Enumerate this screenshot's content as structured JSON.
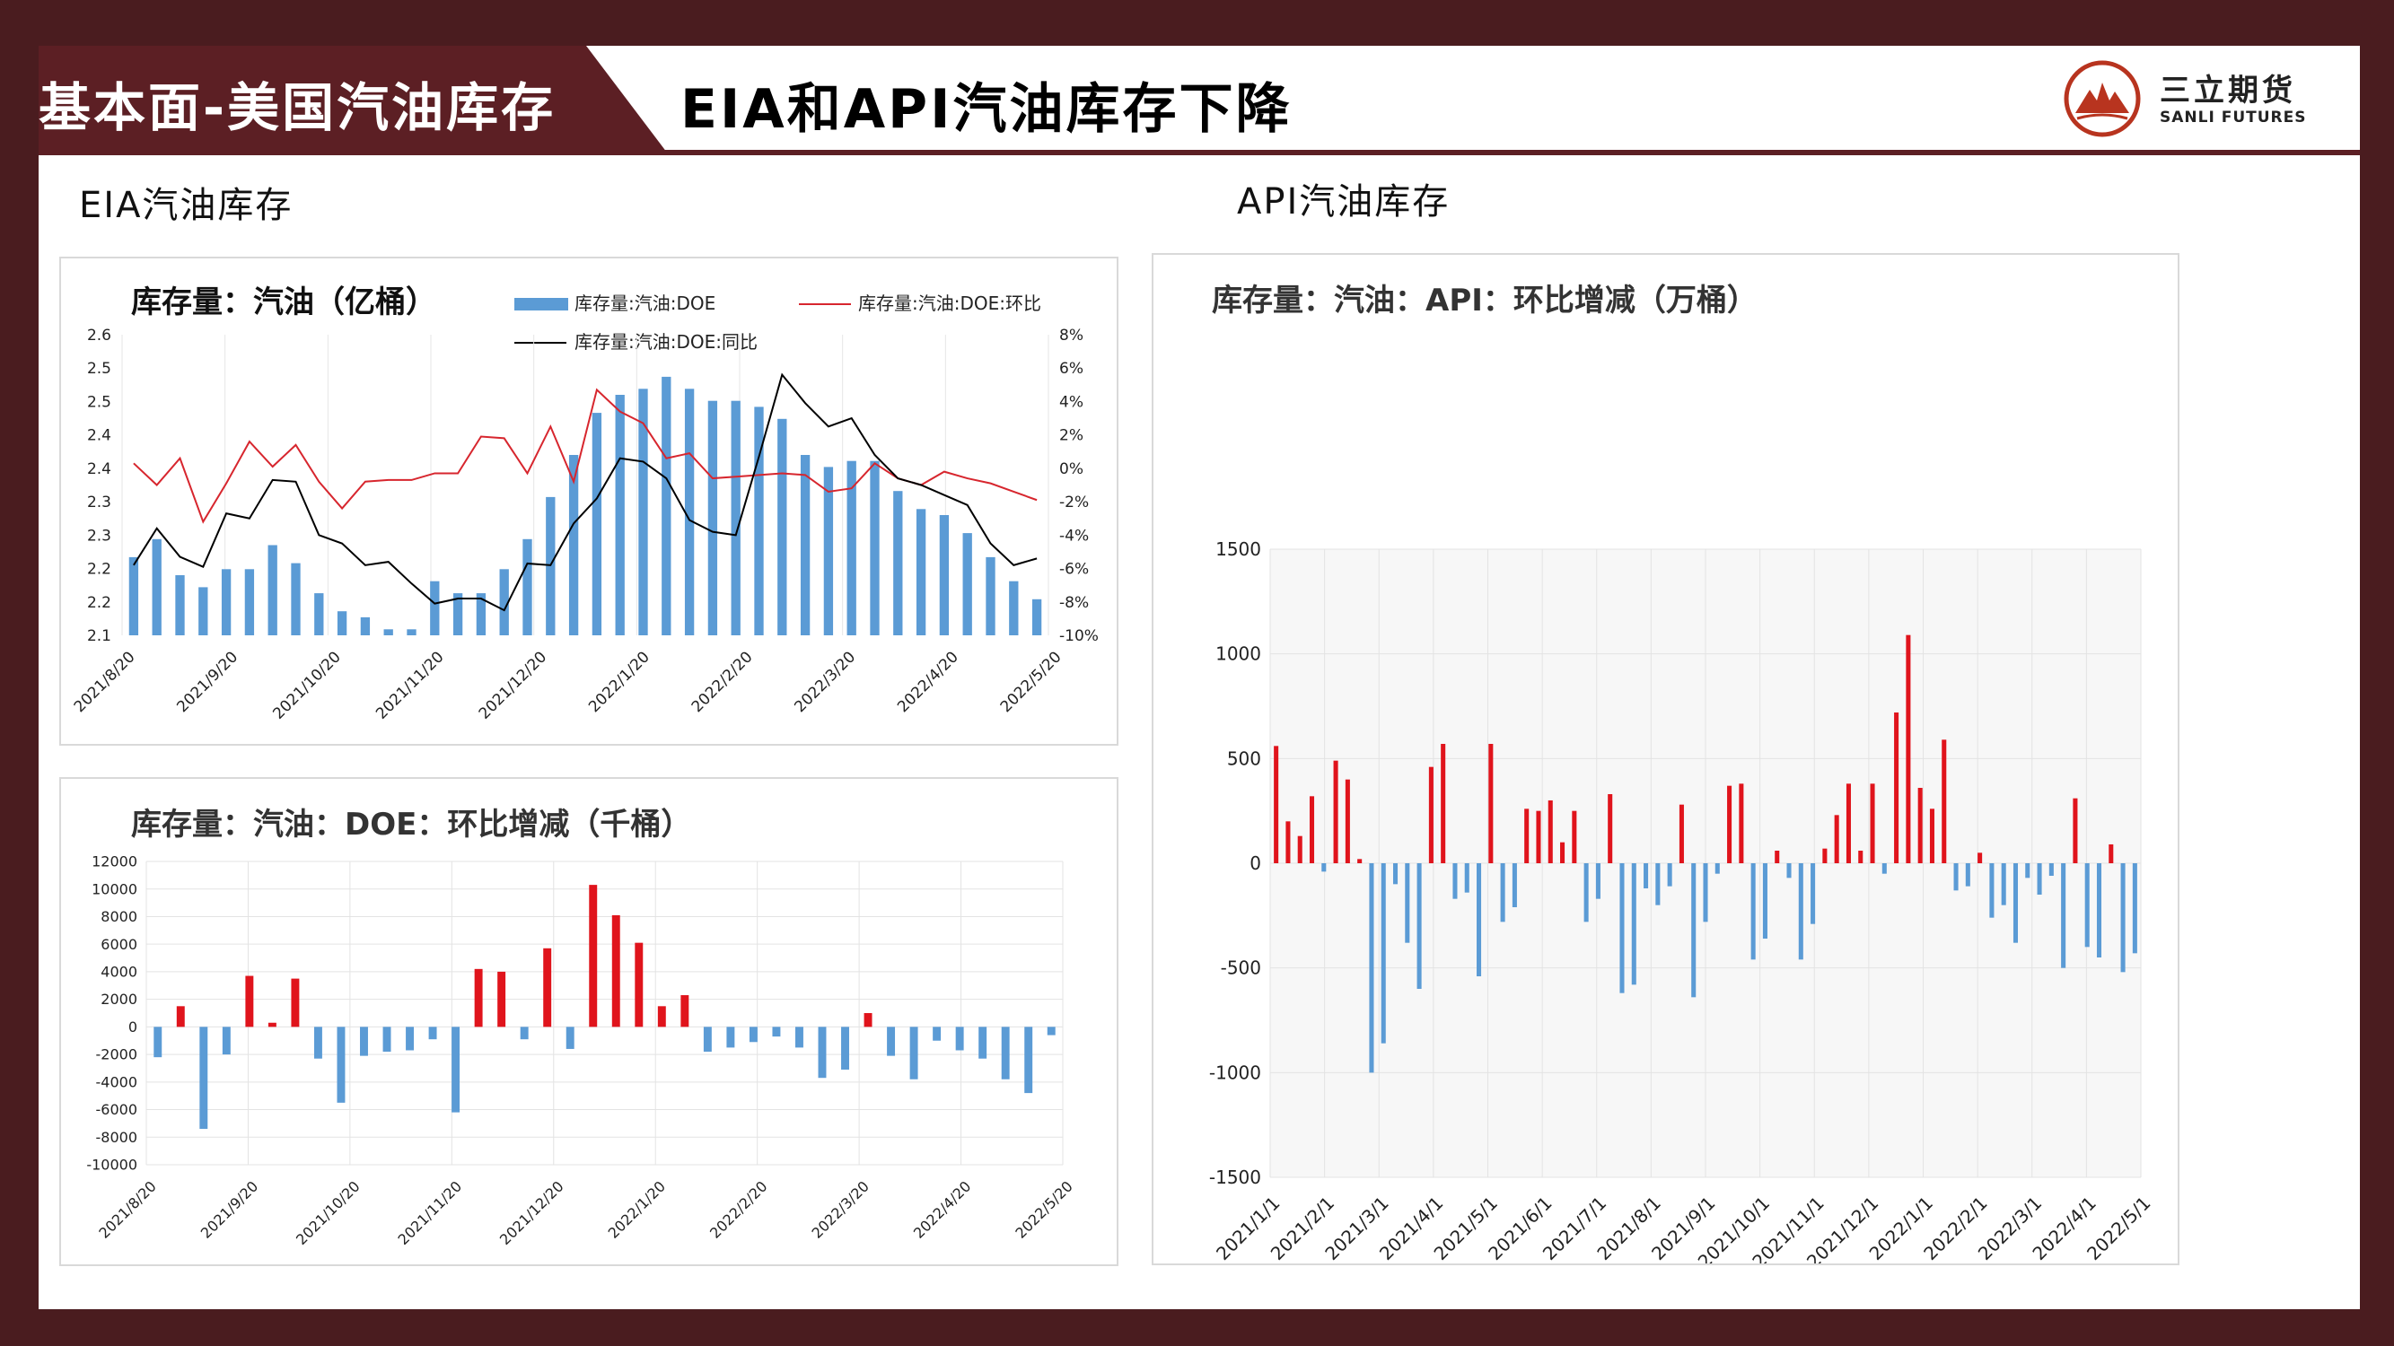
{
  "header": {
    "section_title": "基本面-美国汽油库存",
    "main_title": "EIA和API汽油库存下降",
    "logo_text_cn": "三立期货",
    "logo_text_en": "SANLI FUTURES",
    "colors": {
      "band": "#5c1f24",
      "frame": "#4a1c1f"
    }
  },
  "eia_section_title": "EIA汽油库存",
  "api_section_title": "API汽油库存",
  "chart_data": [
    {
      "type": "bar",
      "id": "eia-stock",
      "title": "库存量：汽油（亿桶）",
      "legend": [
        "库存量:汽油:DOE",
        "库存量:汽油:DOE:环比",
        "库存量:汽油:DOE:同比"
      ],
      "x_labels": [
        "2021/8/20",
        "2021/9/20",
        "2021/10/20",
        "2021/11/20",
        "2021/12/20",
        "2022/1/20",
        "2022/2/20",
        "2022/3/20",
        "2022/4/20",
        "2022/5/20"
      ],
      "y_left_ticks": [
        "2.1",
        "2.2",
        "2.2",
        "2.3",
        "2.3",
        "2.4",
        "2.4",
        "2.5",
        "2.5",
        "2.6"
      ],
      "y_right_ticks": [
        "-10%",
        "-8%",
        "-6%",
        "-4%",
        "-2%",
        "0%",
        "2%",
        "4%",
        "6%",
        "8%"
      ],
      "ylim_left": [
        2.1,
        2.6
      ],
      "ylim_right": [
        -10,
        8
      ],
      "series": [
        {
          "name": "库存量:汽油:DOE",
          "kind": "bar",
          "axis": "left",
          "color": "#5b9bd5",
          "values": [
            2.23,
            2.26,
            2.2,
            2.18,
            2.21,
            2.21,
            2.25,
            2.22,
            2.17,
            2.14,
            2.13,
            2.11,
            2.11,
            2.19,
            2.17,
            2.17,
            2.21,
            2.26,
            2.33,
            2.4,
            2.47,
            2.5,
            2.51,
            2.53,
            2.51,
            2.49,
            2.49,
            2.48,
            2.46,
            2.4,
            2.38,
            2.39,
            2.39,
            2.34,
            2.31,
            2.3,
            2.27,
            2.23,
            2.19,
            2.16
          ]
        },
        {
          "name": "库存量:汽油:DOE:环比",
          "kind": "line",
          "axis": "right",
          "color": "#d7262e",
          "values": [
            0.3,
            -1.0,
            0.6,
            -3.2,
            -0.9,
            1.6,
            0.1,
            1.4,
            -0.8,
            -2.4,
            -0.8,
            -0.7,
            -0.7,
            -0.3,
            -0.3,
            1.9,
            1.8,
            -0.3,
            2.5,
            -0.8,
            4.7,
            3.4,
            2.7,
            0.6,
            0.9,
            -0.6,
            -0.5,
            -0.4,
            -0.3,
            -0.4,
            -1.4,
            -1.2,
            0.3,
            -0.6,
            -1.0,
            -0.2,
            -0.6,
            -0.9,
            -1.4,
            -1.9
          ]
        },
        {
          "name": "库存量:汽油:DOE:同比",
          "kind": "line",
          "axis": "right",
          "color": "#000000",
          "values": [
            -5.8,
            -3.6,
            -5.3,
            -5.9,
            -2.7,
            -3.0,
            -0.7,
            -0.8,
            -4.0,
            -4.5,
            -5.8,
            -5.6,
            -6.9,
            -8.1,
            -7.8,
            -7.8,
            -8.5,
            -5.7,
            -5.8,
            -3.3,
            -1.8,
            0.6,
            0.4,
            -0.6,
            -3.1,
            -3.8,
            -4.0,
            0.7,
            5.6,
            3.9,
            2.5,
            3.0,
            0.8,
            -0.6,
            -1.0,
            -1.6,
            -2.2,
            -4.5,
            -5.8,
            -5.4
          ]
        }
      ]
    },
    {
      "type": "bar",
      "id": "eia-change",
      "title": "库存量：汽油：DOE：环比增减（千桶）",
      "x_labels": [
        "2021/8/20",
        "2021/9/20",
        "2021/10/20",
        "2021/11/20",
        "2021/12/20",
        "2022/1/20",
        "2022/2/20",
        "2022/3/20",
        "2022/4/20",
        "2022/5/20"
      ],
      "y_ticks": [
        "12000",
        "10000",
        "8000",
        "6000",
        "4000",
        "2000",
        "0",
        "-2000",
        "-4000",
        "-6000",
        "-8000",
        "-10000"
      ],
      "ylim": [
        -10000,
        12000
      ],
      "colors": {
        "positive": "#e0141c",
        "negative": "#5b9bd5"
      },
      "values": [
        -2200,
        1500,
        -7400,
        -2000,
        3700,
        300,
        3500,
        -2300,
        -5500,
        -2100,
        -1800,
        -1700,
        -900,
        -6200,
        4200,
        4000,
        -900,
        5700,
        -1600,
        10300,
        8100,
        6100,
        1500,
        2300,
        -1800,
        -1500,
        -1100,
        -700,
        -1500,
        -3700,
        -3100,
        1000,
        -2100,
        -3800,
        -1000,
        -1700,
        -2300,
        -3800,
        -4800,
        -600
      ]
    },
    {
      "type": "bar",
      "id": "api-change",
      "title": "库存量：汽油：API：环比增减（万桶）",
      "x_labels": [
        "2021/1/1",
        "2021/2/1",
        "2021/3/1",
        "2021/4/1",
        "2021/5/1",
        "2021/6/1",
        "2021/7/1",
        "2021/8/1",
        "2021/9/1",
        "2021/10/1",
        "2021/11/1",
        "2021/12/1",
        "2022/1/1",
        "2022/2/1",
        "2022/3/1",
        "2022/4/1",
        "2022/5/1"
      ],
      "y_ticks": [
        "1500",
        "1000",
        "500",
        "0",
        "-500",
        "-1000",
        "-1500"
      ],
      "ylim": [
        -1500,
        1500
      ],
      "colors": {
        "positive": "#e0141c",
        "negative": "#5b9bd5"
      },
      "values": [
        560,
        200,
        130,
        320,
        -40,
        490,
        400,
        20,
        -1000,
        -860,
        -100,
        -380,
        -600,
        460,
        570,
        -170,
        -140,
        -540,
        570,
        -280,
        -210,
        260,
        250,
        300,
        100,
        250,
        -280,
        -170,
        330,
        -620,
        -580,
        -120,
        -200,
        -110,
        280,
        -640,
        -280,
        -50,
        370,
        380,
        -460,
        -360,
        60,
        -70,
        -460,
        -290,
        70,
        230,
        380,
        60,
        380,
        -50,
        720,
        1090,
        360,
        260,
        590,
        -130,
        -110,
        50,
        -260,
        -200,
        -380,
        -70,
        -150,
        -60,
        -500,
        310,
        -400,
        -450,
        90,
        -520,
        -430
      ]
    }
  ]
}
